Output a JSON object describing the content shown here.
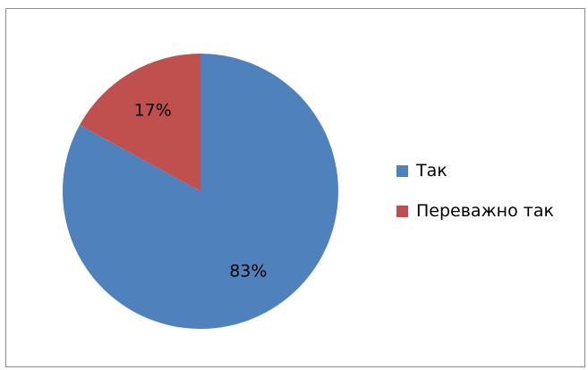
{
  "chart_data": {
    "type": "pie",
    "categories": [
      "Так",
      "Переважно так"
    ],
    "values": [
      83,
      17
    ],
    "data_labels": [
      "83%",
      "17%"
    ],
    "colors": [
      "#4F81BD",
      "#C0504D"
    ],
    "legend": {
      "position": "right",
      "entries": [
        "Так",
        "Переважно так"
      ]
    }
  }
}
